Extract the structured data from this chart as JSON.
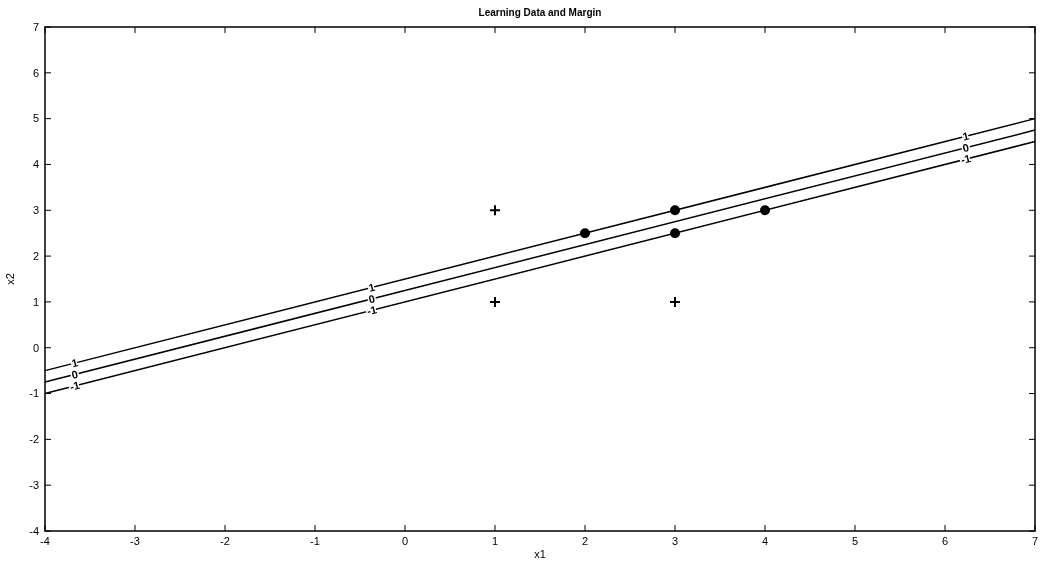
{
  "chart_data": {
    "type": "scatter",
    "title": "Learning Data and Margin",
    "xlabel": "x1",
    "ylabel": "x2",
    "xlim": [
      -4,
      7
    ],
    "ylim": [
      -4,
      7
    ],
    "xticks": [
      -4,
      -3,
      -2,
      -1,
      0,
      1,
      2,
      3,
      4,
      5,
      6,
      7
    ],
    "yticks": [
      -4,
      -3,
      -2,
      -1,
      0,
      1,
      2,
      3,
      4,
      5,
      6,
      7
    ],
    "grid": false,
    "series": [
      {
        "name": "1",
        "type": "line",
        "color": "#000000",
        "x": [
          -4,
          7
        ],
        "values": [
          -0.5,
          5
        ]
      },
      {
        "name": "0",
        "type": "line",
        "color": "#000000",
        "x": [
          -4,
          7
        ],
        "values": [
          -0.75,
          4.75
        ]
      },
      {
        "name": "-1",
        "type": "line",
        "color": "#000000",
        "x": [
          -4,
          7
        ],
        "values": [
          -1,
          4.5
        ]
      },
      {
        "marker": "cross",
        "color": "#000000",
        "x": [
          1
        ],
        "values": [
          3
        ]
      },
      {
        "marker": "circle",
        "color": "#000000",
        "x": [
          2,
          3,
          3,
          4
        ],
        "values": [
          2.5,
          3,
          2.5,
          3
        ]
      },
      {
        "marker": "cross",
        "color": "#000000",
        "x": [
          1,
          3
        ],
        "values": [
          1,
          1
        ]
      }
    ]
  }
}
